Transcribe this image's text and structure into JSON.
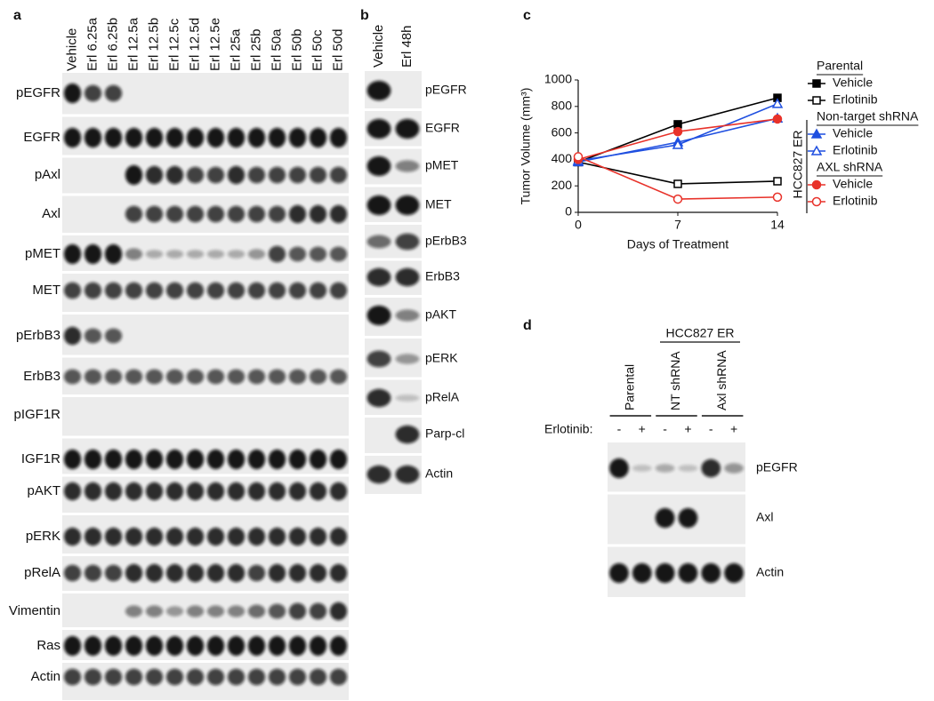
{
  "panel_labels": [
    "a",
    "b",
    "c",
    "d"
  ],
  "panel_a": {
    "lanes": [
      "Vehicle",
      "Erl 6.25a",
      "Erl 6.25b",
      "Erl 12.5a",
      "Erl 12.5b",
      "Erl 12.5c",
      "Erl 12.5d",
      "Erl 12.5e",
      "Erl 25a",
      "Erl 25b",
      "Erl 50a",
      "Erl 50b",
      "Erl 50c",
      "Erl 50d"
    ],
    "rows": [
      "pEGFR",
      "EGFR",
      "pAxl",
      "Axl",
      "pMET",
      "MET",
      "pErbB3",
      "ErbB3",
      "pIGF1R",
      "IGF1R",
      "pAKT",
      "pERK",
      "pRelA",
      "Vimentin",
      "Ras",
      "Actin"
    ]
  },
  "panel_b": {
    "lanes": [
      "Vehicle",
      "Erl 48h"
    ],
    "rows": [
      "pEGFR",
      "EGFR",
      "pMET",
      "MET",
      "pErbB3",
      "ErbB3",
      "pAKT",
      "pERK",
      "pRelA",
      "Parp-cl",
      "Actin"
    ]
  },
  "panel_d": {
    "title": "HCC827 ER",
    "groups": [
      "Parental",
      "NT shRNA",
      "Axl shRNA"
    ],
    "treatment_label": "Erlotinib:",
    "signs": [
      "-",
      "+",
      "-",
      "+",
      "-",
      "+"
    ],
    "rows": [
      "pEGFR",
      "Axl",
      "Actin"
    ]
  },
  "chart_data": {
    "type": "line",
    "x_label": "Days of Treatment",
    "y_label": "Tumor Volume (mm³)",
    "x": [
      0,
      7,
      14
    ],
    "xlim": [
      0,
      14
    ],
    "xticks": [
      0,
      7,
      14
    ],
    "ylim": [
      0,
      1000
    ],
    "yticks": [
      0,
      200,
      400,
      600,
      800,
      1000
    ],
    "legend_label": "HCC827 ER",
    "legend_groups": [
      "Parental",
      "Non-target shRNA",
      "AXL shRNA"
    ],
    "series": [
      {
        "name": "Vehicle",
        "color": "#000000",
        "marker": "square",
        "filled": true,
        "values": [
          380,
          665,
          865
        ]
      },
      {
        "name": "Erlotinib",
        "color": "#000000",
        "marker": "square",
        "filled": false,
        "values": [
          380,
          215,
          235
        ]
      },
      {
        "name": "Vehicle",
        "color": "#1f4fe0",
        "marker": "triangle",
        "filled": true,
        "values": [
          380,
          530,
          710
        ]
      },
      {
        "name": "Erlotinib",
        "color": "#1f4fe0",
        "marker": "triangle",
        "filled": false,
        "values": [
          390,
          510,
          820
        ]
      },
      {
        "name": "Vehicle",
        "color": "#e8322a",
        "marker": "circle",
        "filled": true,
        "values": [
          400,
          610,
          705
        ]
      },
      {
        "name": "Erlotinib",
        "color": "#e8322a",
        "marker": "circle",
        "filled": false,
        "values": [
          420,
          100,
          115
        ]
      }
    ]
  }
}
